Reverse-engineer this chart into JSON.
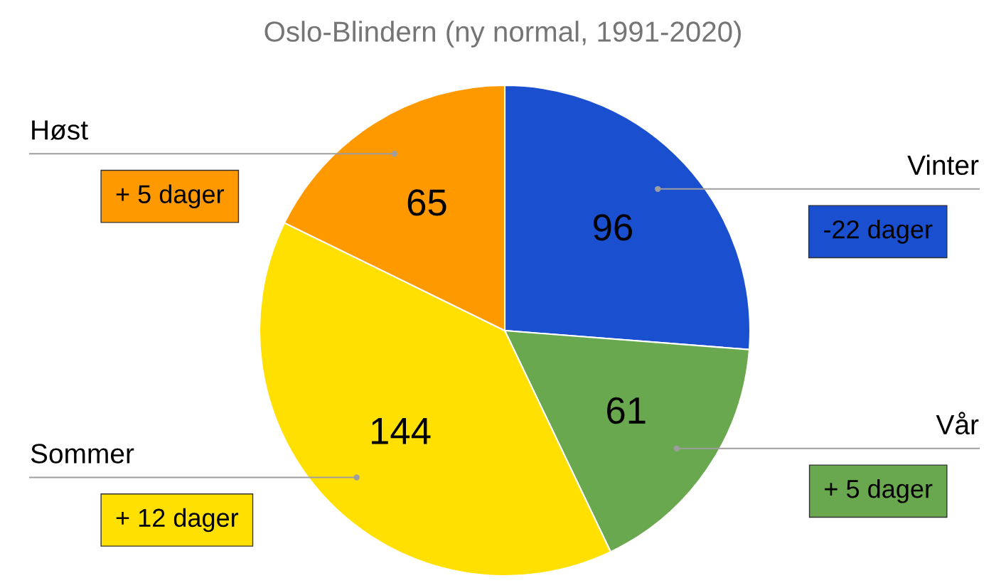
{
  "chart_data": {
    "type": "pie",
    "title": "Oslo-Blindern (ny normal, 1991-2020)",
    "categories": [
      "Vinter",
      "Vår",
      "Sommer",
      "Høst"
    ],
    "values": [
      96,
      61,
      144,
      65
    ],
    "colors": [
      "#1a4fd0",
      "#6aa84f",
      "#ffe000",
      "#ff9900"
    ],
    "data_labels": true,
    "annotations": [
      "-22 dager",
      "+ 5 dager",
      "+ 12 dager",
      "+ 5 dager"
    ]
  }
}
